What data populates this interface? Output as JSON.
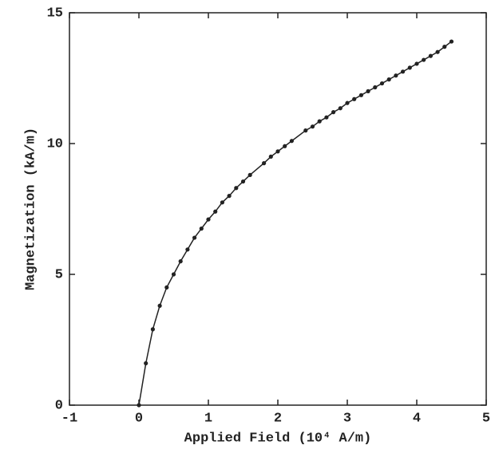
{
  "chart_data": {
    "type": "line",
    "x_label": "Applied Field (10⁴ A/m)",
    "y_label": "Magnetization (kA/m)",
    "x": [
      0,
      0.1,
      0.2,
      0.3,
      0.4,
      0.5,
      0.6,
      0.7,
      0.8,
      0.9,
      1.0,
      1.1,
      1.2,
      1.3,
      1.4,
      1.5,
      1.6,
      1.8,
      1.9,
      2.0,
      2.1,
      2.2,
      2.4,
      2.5,
      2.6,
      2.7,
      2.8,
      2.9,
      3.0,
      3.1,
      3.2,
      3.3,
      3.4,
      3.5,
      3.6,
      3.7,
      3.8,
      3.9,
      4.0,
      4.1,
      4.2,
      4.3,
      4.4,
      4.5
    ],
    "series": [
      {
        "color": "#222222",
        "values": [
          0,
          1.6,
          2.9,
          3.8,
          4.5,
          5.0,
          5.5,
          5.95,
          6.4,
          6.75,
          7.1,
          7.4,
          7.75,
          8.0,
          8.3,
          8.55,
          8.8,
          9.25,
          9.5,
          9.7,
          9.9,
          10.1,
          10.5,
          10.65,
          10.85,
          11.0,
          11.2,
          11.35,
          11.55,
          11.7,
          11.85,
          12.0,
          12.15,
          12.3,
          12.45,
          12.6,
          12.75,
          12.9,
          13.05,
          13.2,
          13.35,
          13.5,
          13.7,
          13.9
        ]
      }
    ],
    "xlim": [
      -1,
      5
    ],
    "xticks": [
      -1,
      0,
      1,
      2,
      3,
      4,
      5
    ],
    "ylim": [
      0,
      15
    ],
    "yticks": [
      0,
      5,
      10,
      15
    ],
    "markers": true
  }
}
